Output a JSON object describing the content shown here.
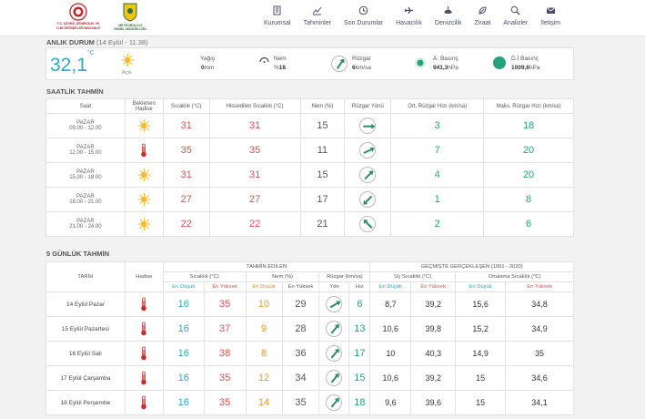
{
  "header": {
    "logo1_text": "T.C. ÇEVRE, ŞEHİRCİLİK VE İKLİM DEĞİŞİKLİĞİ BAKANLIĞI",
    "logo2_text": "METEOROLOJİ GENEL MÜDÜRLÜĞÜ",
    "nav": [
      {
        "label": "Kurumsal",
        "icon": "building-icon"
      },
      {
        "label": "Tahminler",
        "icon": "chart-line-icon"
      },
      {
        "label": "Son Durumlar",
        "icon": "clock-icon"
      },
      {
        "label": "Havacılık",
        "icon": "plane-icon"
      },
      {
        "label": "Denizcilik",
        "icon": "ship-icon"
      },
      {
        "label": "Ziraat",
        "icon": "leaf-icon"
      },
      {
        "label": "Analizler",
        "icon": "search-chart-icon"
      },
      {
        "label": "İletişim",
        "icon": "envelope-icon"
      }
    ]
  },
  "current": {
    "title": "ANLIK DURUM",
    "subtitle": "(14 Eylül - 11.38)",
    "temp": "32,1",
    "temp_unit": "°C",
    "condition": "Açık",
    "rain_label": "Yağış",
    "rain_value": "0",
    "rain_unit": "mm",
    "humidity_label": "Nem",
    "humidity_prefix": "%",
    "humidity_value": "18",
    "wind_label": "Rüzgar",
    "wind_value": "6",
    "wind_unit": "km/sa",
    "pressure_label": "A. Basınç",
    "pressure_value": "941,3",
    "pressure_unit": "hPa",
    "sea_pressure_label": "D.İ Basınç",
    "sea_pressure_value": "1009,6",
    "sea_pressure_unit": "hPa"
  },
  "hourly": {
    "title": "SAATLİK TAHMİN",
    "headers": {
      "saat": "Saat",
      "beklenen": "Beklenen Hadise",
      "sicaklik": "Sıcaklık (°C)",
      "hissedilen": "Hissedilen Sıcaklık (°C)",
      "nem": "Nem (%)",
      "yon": "Rüzgar Yönü",
      "ort": "Ort. Rüzgar Hızı (km/sa)",
      "maks": "Maks. Rüzgar Hızı (km/sa)"
    },
    "rows": [
      {
        "day": "PAZAR",
        "time": "09.00 - 12.00",
        "event": "sun",
        "temp": "31",
        "feels": "31",
        "hum": "15",
        "dir": 90,
        "avg": "3",
        "max": "18"
      },
      {
        "day": "PAZAR",
        "time": "12.00 - 15.00",
        "event": "thermometer",
        "temp": "35",
        "feels": "35",
        "hum": "11",
        "dir": 65,
        "avg": "7",
        "max": "20"
      },
      {
        "day": "PAZAR",
        "time": "15.00 - 18.00",
        "event": "sun",
        "temp": "31",
        "feels": "31",
        "hum": "15",
        "dir": 45,
        "avg": "4",
        "max": "20"
      },
      {
        "day": "PAZAR",
        "time": "18.00 - 21.00",
        "event": "sun",
        "temp": "27",
        "feels": "27",
        "hum": "17",
        "dir": 225,
        "avg": "1",
        "max": "8"
      },
      {
        "day": "PAZAR",
        "time": "21.00 - 24.00",
        "event": "sun",
        "temp": "22",
        "feels": "22",
        "hum": "21",
        "dir": 315,
        "avg": "2",
        "max": "6"
      }
    ]
  },
  "daily": {
    "title": "5 GÜNLÜK TAHMİN",
    "headers": {
      "tarih": "TARİH",
      "hadise": "Hadise",
      "estimated": "TAHMİN EDİLEN",
      "past": "GEÇMİŞTE GERÇEKLEŞEN (1991 - 2020)",
      "sicaklik": "Sıcaklık (°C)",
      "nem": "Nem (%)",
      "ruzgar": "Rüzgar (km/sa)",
      "uc": "Uç Sıcaklık (°C)",
      "ort": "Ortalama Sıcaklık (°C)",
      "lo": "En Düşük",
      "hi": "En Yüksek",
      "yon": "Yön",
      "hiz": "Hız"
    },
    "rows": [
      {
        "date": "14 Eylül Pazar",
        "tlo": "16",
        "thi": "35",
        "hlo": "10",
        "hhi": "29",
        "dir": 60,
        "speed": "6",
        "elo": "8,7",
        "ehi": "39,2",
        "alo": "15,6",
        "ahi": "34,8"
      },
      {
        "date": "15 Eylül Pazartesi",
        "tlo": "16",
        "thi": "37",
        "hlo": "9",
        "hhi": "28",
        "dir": 40,
        "speed": "13",
        "elo": "10,6",
        "ehi": "39,8",
        "alo": "15,2",
        "ahi": "34,9"
      },
      {
        "date": "16 Eylül Salı",
        "tlo": "16",
        "thi": "38",
        "hlo": "8",
        "hhi": "36",
        "dir": 40,
        "speed": "17",
        "elo": "10",
        "ehi": "40,3",
        "alo": "14,9",
        "ahi": "35"
      },
      {
        "date": "17 Eylül Çarşamba",
        "tlo": "16",
        "thi": "35",
        "hlo": "12",
        "hhi": "34",
        "dir": 40,
        "speed": "15",
        "elo": "10,6",
        "ehi": "39,2",
        "alo": "15",
        "ahi": "34,6"
      },
      {
        "date": "18 Eylül Perşembe",
        "tlo": "16",
        "thi": "35",
        "hlo": "14",
        "hhi": "35",
        "dir": 40,
        "speed": "18",
        "elo": "9,6",
        "ehi": "39,6",
        "alo": "15",
        "ahi": "34,1"
      }
    ]
  }
}
